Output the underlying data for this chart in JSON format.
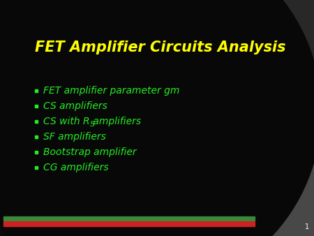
{
  "title": "FET Amplifier Circuits Analysis",
  "title_color": "#FFFF00",
  "title_fontsize": 15,
  "bullet_items": [
    "FET amplifier parameter gm",
    "CS amplifiers",
    "CS with R_S amplifiers",
    "SF amplifiers",
    "Bootstrap amplifier",
    "CG amplifiers"
  ],
  "bullet_color": "#22EE22",
  "bullet_fontsize": 10,
  "background_color": "#0a0a0a",
  "dark_circle_color": "#101010",
  "gray_arc_color": "#555555",
  "gray_wedge_color": "#444444",
  "bar_green": "#3a8a3a",
  "bar_red": "#cc2222",
  "slide_number": "1",
  "fig_width": 4.5,
  "fig_height": 3.38,
  "dpi": 100
}
